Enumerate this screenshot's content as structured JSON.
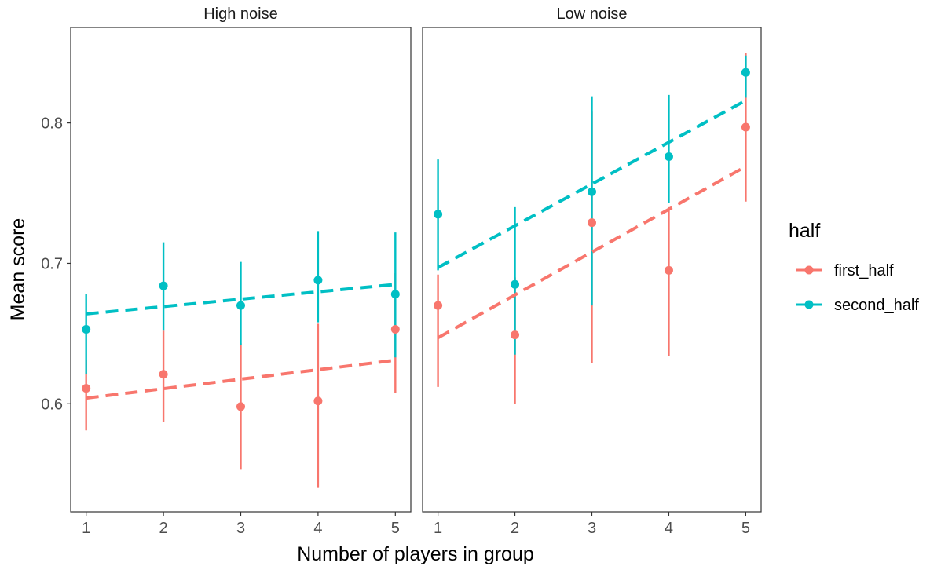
{
  "chart_data": {
    "type": "scatter",
    "xlabel": "Number of players in group",
    "ylabel": "Mean score",
    "x_ticks": [
      1,
      2,
      3,
      4,
      5
    ],
    "y_ticks": [
      0.6,
      0.7,
      0.8
    ],
    "y_tick_labels": [
      "0.6",
      "0.7",
      "0.8"
    ],
    "ylim": [
      0.523,
      0.868
    ],
    "xlim": [
      0.8,
      5.2
    ],
    "legend": {
      "title": "half",
      "position": "right",
      "entries": [
        {
          "name": "first_half",
          "color": "#F8766D"
        },
        {
          "name": "second_half",
          "color": "#00BFC4"
        }
      ]
    },
    "panels": [
      {
        "title": "High noise",
        "series": [
          {
            "name": "first_half",
            "color": "#F8766D",
            "x": [
              1,
              2,
              3,
              4,
              5
            ],
            "y": [
              0.611,
              0.621,
              0.598,
              0.602,
              0.653
            ],
            "lower": [
              0.581,
              0.587,
              0.553,
              0.54,
              0.608
            ],
            "upper": [
              0.631,
              0.652,
              0.643,
              0.657,
              0.693
            ],
            "fit": [
              0.604,
              0.631
            ]
          },
          {
            "name": "second_half",
            "color": "#00BFC4",
            "x": [
              1,
              2,
              3,
              4,
              5
            ],
            "y": [
              0.653,
              0.684,
              0.67,
              0.688,
              0.678
            ],
            "lower": [
              0.621,
              0.652,
              0.642,
              0.658,
              0.633
            ],
            "upper": [
              0.678,
              0.715,
              0.701,
              0.723,
              0.722
            ],
            "fit": [
              0.664,
              0.685
            ]
          }
        ]
      },
      {
        "title": "Low noise",
        "series": [
          {
            "name": "first_half",
            "color": "#F8766D",
            "x": [
              1,
              2,
              3,
              4,
              5
            ],
            "y": [
              0.67,
              0.649,
              0.729,
              0.695,
              0.797
            ],
            "lower": [
              0.612,
              0.6,
              0.629,
              0.634,
              0.744
            ],
            "upper": [
              0.692,
              0.69,
              0.808,
              0.74,
              0.85
            ],
            "fit": [
              0.647,
              0.769
            ]
          },
          {
            "name": "second_half",
            "color": "#00BFC4",
            "x": [
              1,
              2,
              3,
              4,
              5
            ],
            "y": [
              0.735,
              0.685,
              0.751,
              0.776,
              0.836
            ],
            "lower": [
              0.695,
              0.635,
              0.67,
              0.743,
              0.818
            ],
            "upper": [
              0.774,
              0.74,
              0.819,
              0.82,
              0.848
            ],
            "fit": [
              0.697,
              0.816
            ]
          }
        ]
      }
    ]
  }
}
